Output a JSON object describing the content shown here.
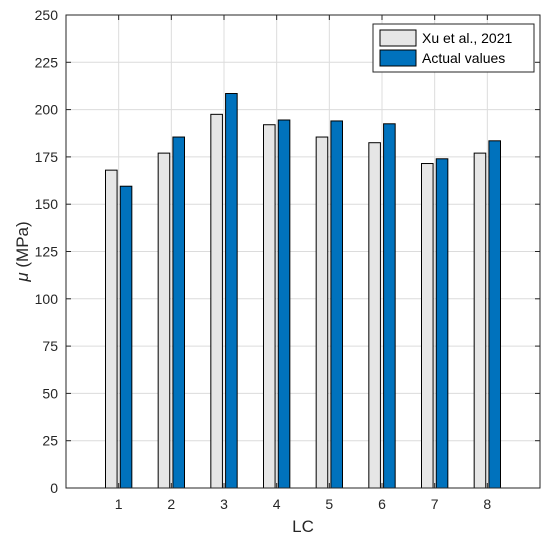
{
  "chart_data": {
    "type": "bar",
    "categories": [
      "1",
      "2",
      "3",
      "4",
      "5",
      "6",
      "7",
      "8"
    ],
    "series": [
      {
        "name": "Xu et al., 2021",
        "color": "#e6e6e6",
        "values": [
          168,
          177,
          197.5,
          192,
          185.5,
          182.5,
          171.5,
          177
        ]
      },
      {
        "name": "Actual values",
        "color": "#0072bd",
        "values": [
          159.5,
          185.5,
          208.5,
          194.5,
          194,
          192.5,
          174,
          183.5
        ]
      }
    ],
    "xlabel": "LC",
    "ylabel_symbol": "μ",
    "ylabel_unit": " (MPa)",
    "ylim": [
      0,
      250
    ],
    "yticks": [
      "0",
      "25",
      "50",
      "75",
      "100",
      "125",
      "150",
      "175",
      "200",
      "225",
      "250"
    ],
    "grid": true,
    "legend_position": "top-right"
  }
}
